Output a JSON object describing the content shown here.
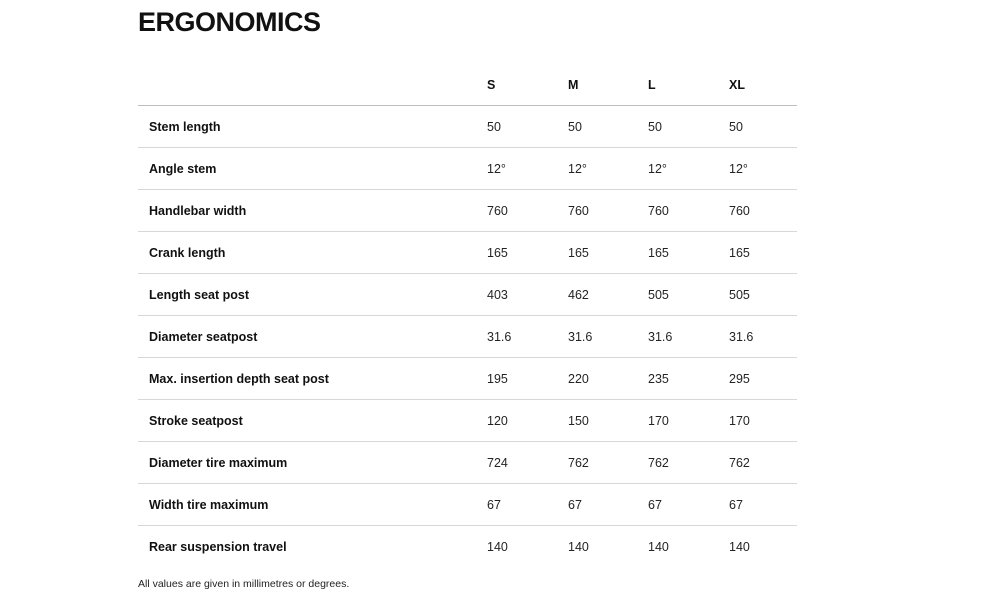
{
  "page": {
    "title": "ERGONOMICS",
    "footnote": "All values are given in millimetres or degrees."
  },
  "table": {
    "columns": [
      "S",
      "M",
      "L",
      "XL"
    ],
    "rows": [
      {
        "label": "Stem length",
        "values": [
          "50",
          "50",
          "50",
          "50"
        ]
      },
      {
        "label": "Angle stem",
        "values": [
          "12°",
          "12°",
          "12°",
          "12°"
        ]
      },
      {
        "label": "Handlebar width",
        "values": [
          "760",
          "760",
          "760",
          "760"
        ]
      },
      {
        "label": "Crank length",
        "values": [
          "165",
          "165",
          "165",
          "165"
        ]
      },
      {
        "label": "Length seat post",
        "values": [
          "403",
          "462",
          "505",
          "505"
        ]
      },
      {
        "label": "Diameter seatpost",
        "values": [
          "31.6",
          "31.6",
          "31.6",
          "31.6"
        ]
      },
      {
        "label": "Max. insertion depth seat post",
        "values": [
          "195",
          "220",
          "235",
          "295"
        ]
      },
      {
        "label": "Stroke seatpost",
        "values": [
          "120",
          "150",
          "170",
          "170"
        ]
      },
      {
        "label": "Diameter tire maximum",
        "values": [
          "724",
          "762",
          "762",
          "762"
        ]
      },
      {
        "label": "Width tire maximum",
        "values": [
          "67",
          "67",
          "67",
          "67"
        ]
      },
      {
        "label": "Rear suspension travel",
        "values": [
          "140",
          "140",
          "140",
          "140"
        ]
      }
    ]
  },
  "colors": {
    "background": "#ffffff",
    "text": "#111111",
    "row_line": "#d8d8d8",
    "header_line": "#bdbdbd"
  }
}
